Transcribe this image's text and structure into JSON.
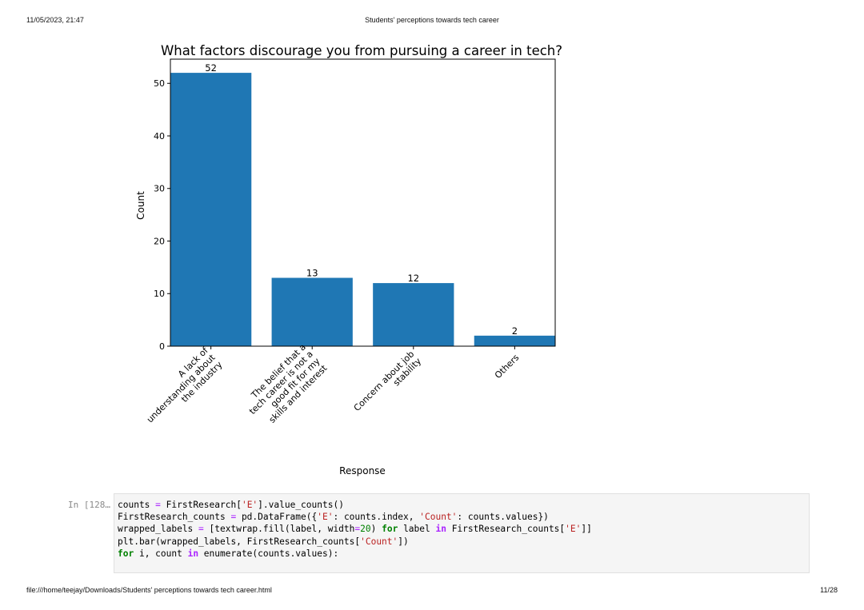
{
  "header": {
    "datetime": "11/05/2023, 21:47",
    "doc_title": "Students' perceptions towards tech career"
  },
  "footer": {
    "path": "file:///home/teejay/Downloads/Students' perceptions towards tech career.html",
    "page": "11/28"
  },
  "chart_data": {
    "type": "bar",
    "title": "What factors discourage you from pursuing a career in tech?",
    "xlabel": "Response",
    "ylabel": "Count",
    "categories": [
      [
        "A lack of",
        "understanding about",
        "the industry"
      ],
      [
        "The belief that a",
        "tech career is not a",
        "good fit for my",
        "skills and interest"
      ],
      [
        "Concern about job",
        "stability"
      ],
      [
        "Others"
      ]
    ],
    "values": [
      52,
      13,
      12,
      2
    ],
    "data_labels": [
      "52",
      "13",
      "12",
      "2"
    ],
    "ylim": [
      0,
      54.6
    ],
    "yticks": [
      0,
      10,
      20,
      30,
      40,
      50
    ],
    "bar_color": "#1f77b4",
    "grid": false
  },
  "notebook": {
    "prompt": "In [128…",
    "code_lines": [
      [
        [
          "t",
          "counts "
        ],
        [
          "op",
          "="
        ],
        [
          "t",
          " FirstResearch["
        ],
        [
          "str",
          "'E'"
        ],
        [
          "t",
          "].value_counts()"
        ]
      ],
      [
        [
          "t",
          "FirstResearch_counts "
        ],
        [
          "op",
          "="
        ],
        [
          "t",
          " pd.DataFrame({"
        ],
        [
          "str",
          "'E'"
        ],
        [
          "t",
          ": counts.index, "
        ],
        [
          "str",
          "'Count'"
        ],
        [
          "t",
          ": counts.values})"
        ]
      ],
      [
        [
          "t",
          "wrapped_labels "
        ],
        [
          "op",
          "="
        ],
        [
          "t",
          " [textwrap.fill(label, width"
        ],
        [
          "op",
          "="
        ],
        [
          "num",
          "20"
        ],
        [
          "t",
          ") "
        ],
        [
          "kw",
          "for"
        ],
        [
          "t",
          " label "
        ],
        [
          "in",
          "in"
        ],
        [
          "t",
          " FirstResearch_counts["
        ],
        [
          "str",
          "'E'"
        ],
        [
          "t",
          "]]"
        ]
      ],
      [
        [
          "t",
          "plt.bar(wrapped_labels, FirstResearch_counts["
        ],
        [
          "str",
          "'Count'"
        ],
        [
          "t",
          "])"
        ]
      ],
      [
        [
          "kw",
          "for"
        ],
        [
          "t",
          " i, count "
        ],
        [
          "in",
          "in"
        ],
        [
          "t",
          " enumerate(counts.values):"
        ]
      ]
    ]
  }
}
